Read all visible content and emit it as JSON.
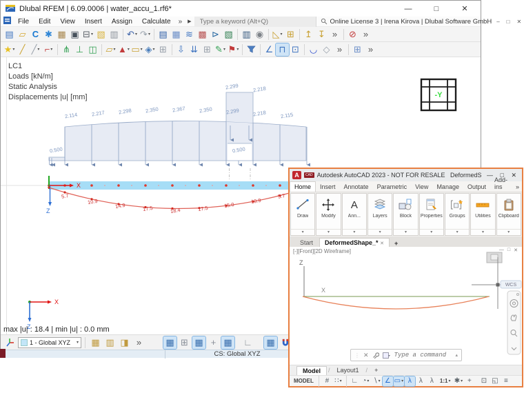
{
  "rfem": {
    "title": "Dlubal RFEM | 6.09.0006 | water_accu_1.rf6*",
    "controls": {
      "minimize": "—",
      "maximize": "□",
      "close": "✕"
    },
    "menus": [
      "File",
      "Edit",
      "View",
      "Insert",
      "Assign",
      "Calculate"
    ],
    "menu_overflow": "»",
    "menu_play": "▶",
    "search_placeholder": "Type a keyword (Alt+Q)",
    "license": "Online License 3 | Irena Kirova | Dlubal Software GmbH",
    "license_controls": {
      "minimize": "–",
      "restore": "□",
      "close": "✕"
    },
    "info_lines": [
      "LC1",
      "Loads [kN/m]",
      "Static Analysis",
      "Displacements |u| [mm]"
    ],
    "viewcube_label": "-Y",
    "axis_x": "X",
    "axis_z": "Z",
    "result_summary": "max |u| : 18.4 | min |u| : 0.0 mm",
    "cs_select": "1 - Global XYZ",
    "cs_status": "CS: Global XYZ",
    "toolbar1": [
      {
        "name": "new-model-icon",
        "glyph": "▤",
        "color": "#3f74c0"
      },
      {
        "name": "open-model-icon",
        "glyph": "▱",
        "color": "#d4a62f"
      },
      {
        "name": "network-project-icon",
        "glyph": "C",
        "color": "#1a7ad2",
        "bold": true
      },
      {
        "name": "manage-models-icon",
        "glyph": "✱",
        "color": "#2f86d6"
      },
      {
        "name": "archive-icon",
        "glyph": "▦",
        "color": "#a8874e"
      },
      {
        "name": "save-icon",
        "glyph": "▣",
        "color": "#47515c"
      },
      {
        "name": "print-icon",
        "glyph": "⊟",
        "color": "#5a6067",
        "dd": true
      },
      {
        "name": "new-printout-report-icon",
        "glyph": "▧",
        "color": "#d8b23a"
      },
      {
        "name": "printout-report-icon",
        "glyph": "▥",
        "color": "#8d939b"
      },
      {
        "sep": true
      },
      {
        "name": "undo-icon",
        "glyph": "↶",
        "color": "#3c62a8",
        "dd": true
      },
      {
        "name": "redo-icon",
        "glyph": "↷",
        "color": "#9aa3ad",
        "dd": true
      },
      {
        "sep": true
      },
      {
        "name": "tables-icon",
        "glyph": "▤",
        "color": "#2f5fa8"
      },
      {
        "name": "spreadsheet-icon",
        "glyph": "▦",
        "color": "#6c8fc8"
      },
      {
        "name": "result-diagram-icon",
        "glyph": "≋",
        "color": "#3f74c0"
      },
      {
        "name": "color-scale-table-icon",
        "glyph": "▩",
        "color": "#b85555"
      },
      {
        "name": "export-tables-icon",
        "glyph": "⊳",
        "color": "#2e6da4"
      },
      {
        "name": "excel-export-icon",
        "glyph": "▧",
        "color": "#2e7d4f"
      },
      {
        "sep": true
      },
      {
        "name": "table-settings-icon",
        "glyph": "▥",
        "color": "#36597e"
      },
      {
        "name": "voice-input-icon",
        "glyph": "◉",
        "color": "#7d8288"
      },
      {
        "sep": true
      },
      {
        "name": "work-plane-icon",
        "glyph": "◺",
        "color": "#c8a032",
        "dd": true
      },
      {
        "name": "plane-offset-icon",
        "glyph": "⊞",
        "color": "#c8a032"
      },
      {
        "sep": true
      },
      {
        "name": "insert-row-above-icon",
        "glyph": "↥",
        "color": "#c8a032"
      },
      {
        "name": "insert-row-below-icon",
        "glyph": "↧",
        "color": "#c8a032"
      },
      {
        "name": "toolbar1-overflow",
        "glyph": "»",
        "color": "#555"
      },
      {
        "sep": true
      },
      {
        "name": "deactivate-results-icon",
        "glyph": "⊘",
        "color": "#c23b3b"
      },
      {
        "name": "toolbar1-overflow-2",
        "glyph": "»",
        "color": "#555"
      }
    ],
    "toolbar2": [
      {
        "name": "new-node-icon",
        "glyph": "★",
        "color": "#e8c122",
        "dd": true
      },
      {
        "name": "new-line-icon",
        "glyph": "╱",
        "color": "#caa22e"
      },
      {
        "name": "new-line-between-icon",
        "glyph": "╱",
        "color": "#98a0aa",
        "dd": true
      },
      {
        "name": "new-polyline-icon",
        "glyph": "⌐",
        "color": "#c23b3b",
        "dd": true
      },
      {
        "sep": true
      },
      {
        "name": "new-member-icon",
        "glyph": "⋔",
        "color": "#2e9e4f"
      },
      {
        "name": "new-member-set-icon",
        "glyph": "⊥",
        "color": "#2e9e4f"
      },
      {
        "name": "new-surface-icon",
        "glyph": "◫",
        "color": "#2e9e4f"
      },
      {
        "sep": true
      },
      {
        "name": "new-opening-icon",
        "glyph": "▱",
        "color": "#c8a032",
        "dd": true
      },
      {
        "name": "new-nodal-support-icon",
        "glyph": "▲",
        "color": "#c23b3b",
        "dd": true
      },
      {
        "name": "new-line-support-icon",
        "glyph": "▭",
        "color": "#c8a032",
        "dd": true
      },
      {
        "name": "new-member-hinge-icon",
        "glyph": "◈",
        "color": "#4a7ebb",
        "dd": true
      },
      {
        "name": "copy-object-icon",
        "glyph": "⊞",
        "color": "#98a0aa"
      },
      {
        "sep": true
      },
      {
        "name": "new-nodal-load-icon",
        "glyph": "⇩",
        "color": "#3f74c0"
      },
      {
        "name": "new-member-load-icon",
        "glyph": "⇊",
        "color": "#3f74c0"
      },
      {
        "name": "new-surface-load-icon",
        "glyph": "⊞",
        "color": "#98a0aa"
      },
      {
        "name": "load-wizard-icon",
        "glyph": "✎",
        "color": "#2e9e4f",
        "dd": true
      },
      {
        "name": "new-imperfection-icon",
        "glyph": "⚑",
        "color": "#c23b3b",
        "dd": true
      },
      {
        "sep": true
      },
      {
        "name": "filter-icon",
        "svg": "funnel"
      },
      {
        "sep": true
      },
      {
        "name": "result-diagram-panel-icon",
        "glyph": "∠",
        "color": "#3f74c0"
      },
      {
        "name": "frame-view-icon",
        "glyph": "⊓",
        "color": "#3f74c0",
        "hl": true
      },
      {
        "name": "animation-icon",
        "glyph": "⊡",
        "color": "#3f74c0"
      },
      {
        "sep": true
      },
      {
        "name": "result-values-icon",
        "glyph": "◡",
        "color": "#2244cc"
      },
      {
        "name": "smooth-results-icon",
        "glyph": "◇",
        "color": "#98a0aa"
      },
      {
        "name": "toolbar2-overflow",
        "glyph": "»",
        "color": "#555"
      },
      {
        "sep": true
      },
      {
        "name": "numbering-icon",
        "glyph": "⊞",
        "color": "#6c8fc8"
      },
      {
        "name": "toolbar2-overflow-2",
        "glyph": "»",
        "color": "#555"
      }
    ],
    "bottombar_left": [
      {
        "name": "coordinate-system-icon",
        "svg": "axes3d"
      }
    ],
    "bottombar_right": [
      {
        "sep": true
      },
      {
        "name": "workplane-icon",
        "glyph": "▦",
        "color": "#c09a3e"
      },
      {
        "name": "move-workplane-icon",
        "glyph": "▥",
        "color": "#c09a3e"
      },
      {
        "name": "plane-select-icon",
        "glyph": "◨",
        "color": "#c09a3e"
      },
      {
        "name": "bottombar-overflow",
        "glyph": "»",
        "color": "#555"
      },
      {
        "gap": 22
      },
      {
        "name": "show-grid-icon",
        "glyph": "▦",
        "color": "#3a6fae",
        "hl": true
      },
      {
        "name": "edit-grid-icon",
        "glyph": "⊞",
        "color": "#8a9099"
      },
      {
        "name": "show-guidelines-icon",
        "glyph": "▦",
        "color": "#3a6fae",
        "hl": true
      },
      {
        "name": "edit-guidelines-icon",
        "glyph": "+",
        "color": "#8a9099"
      },
      {
        "name": "show-axes-icon",
        "glyph": "▦",
        "color": "#3a6fae",
        "hl": true
      },
      {
        "gap": 6
      },
      {
        "name": "ortho-corner-icon",
        "glyph": "∟",
        "color": "#8a9099"
      },
      {
        "gap": 10
      },
      {
        "name": "snap-grid-icon",
        "glyph": "▦",
        "color": "#3a6fae",
        "hl": true
      },
      {
        "name": "object-snap-magnet-icon",
        "svg": "magnet"
      },
      {
        "name": "select-window-icon",
        "glyph": "□",
        "color": "#8a9099"
      },
      {
        "name": "guideline-box-icon",
        "glyph": "▭",
        "color": "#8a9099"
      }
    ]
  },
  "diagram": {
    "top_loads": [
      "2.299",
      "2.218"
    ],
    "loads": [
      "2.114",
      "2.217",
      "2.298",
      "2.350",
      "2.367",
      "2.350",
      "2.299",
      "2.218",
      "2.115"
    ],
    "steps": [
      "0.500",
      "0.500"
    ],
    "displacements": [
      "5.7",
      "10.9",
      "14.9",
      "17.5",
      "18.4",
      "17.5",
      "15.0",
      "10.9",
      "5.7"
    ]
  },
  "autocad": {
    "logo": "A",
    "logo_sub": "CAD",
    "title": "Autodesk AutoCAD 2023 - NOT FOR RESALE",
    "file": "DeformedShape_.dwg",
    "controls": {
      "minimize": "—",
      "maximize": "□",
      "close": "✕"
    },
    "tabs": [
      "Home",
      "Insert",
      "Annotate",
      "Parametric",
      "View",
      "Manage",
      "Output",
      "Add-ins"
    ],
    "tabs_overflow": "»",
    "panels": [
      "Draw",
      "Modify",
      "Ann...",
      "Layers",
      "Block",
      "Properties",
      "Groups",
      "Utilities",
      "Clipboard"
    ],
    "panel_drop": "▾",
    "file_tab_start": "Start",
    "file_tab_doc": "DeformedShape_*",
    "file_tab_close": "✕",
    "file_tab_plus": "+",
    "viewport_label": "[-][Front][2D Wireframe]",
    "viewport_controls": [
      "—",
      "□",
      "✕"
    ],
    "axis_z": "Z",
    "axis_x": "X",
    "wcs": "WCS",
    "command_placeholder": "Type a command",
    "layout_model": "Model",
    "layout_1": "Layout1",
    "layout_plus": "+",
    "statusbar": [
      {
        "name": "model-space-toggle",
        "text": "MODEL"
      },
      {
        "sep": true
      },
      {
        "name": "grid-display-icon",
        "glyph": "#",
        "color": "#5a6268"
      },
      {
        "name": "snap-mode-icon",
        "glyph": "∷",
        "color": "#5a6268",
        "dd": true
      },
      {
        "sep": true
      },
      {
        "name": "ortho-mode-icon",
        "glyph": "∟",
        "color": "#5a6268"
      },
      {
        "name": "polar-tracking-icon",
        "glyph": "◔",
        "color": "#5a6268",
        "dd": true
      },
      {
        "name": "object-snap-tracking-icon",
        "glyph": "∖",
        "color": "#5a6268",
        "dd": true
      },
      {
        "name": "object-snap-icon",
        "glyph": "∠",
        "color": "#1f6ad1",
        "hl": true
      },
      {
        "name": "dynamic-input-icon",
        "glyph": "▭",
        "color": "#1f6ad1",
        "hl": true,
        "dd": true
      },
      {
        "name": "annotation-visibility-icon",
        "glyph": "λ",
        "color": "#1f6ad1",
        "hl": true
      },
      {
        "name": "autoscale-icon",
        "glyph": "λ",
        "color": "#5a6268"
      },
      {
        "name": "annotation-scale-icon",
        "glyph": "λ",
        "color": "#5a6268"
      },
      {
        "name": "annotation-scale-value",
        "text": "1:1",
        "dd": true
      },
      {
        "name": "workspace-switching-icon",
        "glyph": "✱",
        "color": "#5a6268",
        "dd": true
      },
      {
        "name": "isolate-objects-icon",
        "glyph": "+",
        "color": "#5a6268"
      },
      {
        "gap": 4
      },
      {
        "name": "graphics-performance-icon",
        "glyph": "⊡",
        "color": "#5a6268"
      },
      {
        "name": "clean-screen-icon",
        "glyph": "◱",
        "color": "#5a6268"
      },
      {
        "name": "customization-icon",
        "glyph": "≡",
        "color": "#5a6268"
      }
    ]
  }
}
